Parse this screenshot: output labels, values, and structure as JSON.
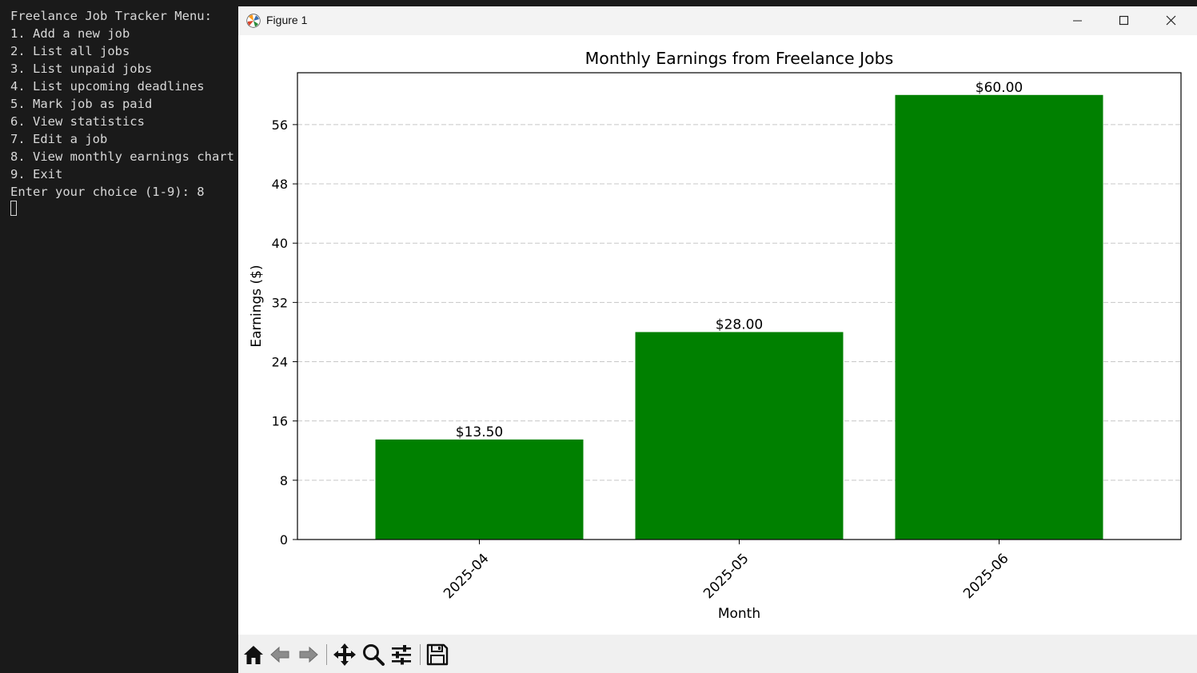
{
  "terminal": {
    "lines": [
      "Freelance Job Tracker Menu:",
      "1. Add a new job",
      "2. List all jobs",
      "3. List unpaid jobs",
      "4. List upcoming deadlines",
      "5. Mark job as paid",
      "6. View statistics",
      "7. Edit a job",
      "8. View monthly earnings chart",
      "9. Exit",
      "Enter your choice (1-9): 8"
    ]
  },
  "window": {
    "title": "Figure 1",
    "icon": "matplotlib-icon",
    "controls": [
      "minimize-icon",
      "maximize-icon",
      "close-icon"
    ]
  },
  "chart_data": {
    "type": "bar",
    "title": "Monthly Earnings from Freelance Jobs",
    "xlabel": "Month",
    "ylabel": "Earnings ($)",
    "categories": [
      "2025-04",
      "2025-05",
      "2025-06"
    ],
    "values": [
      13.5,
      28.0,
      60.0
    ],
    "bar_labels": [
      "$13.50",
      "$28.00",
      "$60.00"
    ],
    "ylim": [
      0,
      63
    ],
    "yticks": [
      0,
      8,
      16,
      24,
      32,
      40,
      48,
      56
    ],
    "xtick_rotation": 45,
    "bar_color": "#008000",
    "grid": "y-dashed",
    "legend": "none"
  },
  "toolbar": {
    "buttons": [
      "home-icon",
      "back-icon",
      "forward-icon",
      "pan-icon",
      "zoom-icon",
      "configure-subplots-icon",
      "save-icon"
    ]
  }
}
